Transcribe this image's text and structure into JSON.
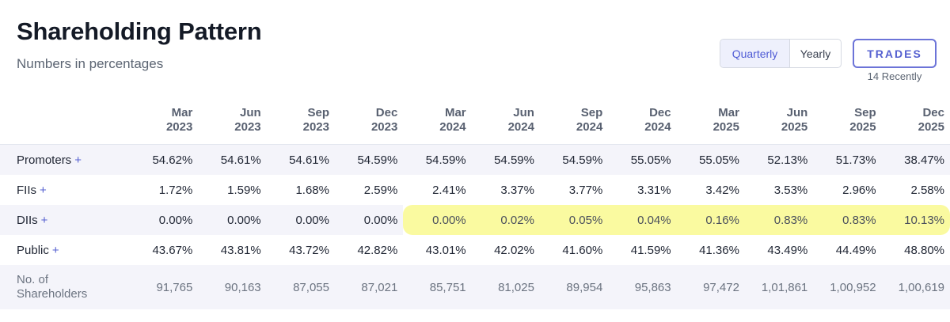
{
  "header": {
    "title": "Shareholding Pattern",
    "subtitle": "Numbers in percentages"
  },
  "controls": {
    "toggle_options": [
      "Quarterly",
      "Yearly"
    ],
    "selected": "Quarterly",
    "trades_label": "TRADES",
    "trades_sub": "14 Recently"
  },
  "table": {
    "periods": [
      {
        "month": "Mar",
        "year": "2023"
      },
      {
        "month": "Jun",
        "year": "2023"
      },
      {
        "month": "Sep",
        "year": "2023"
      },
      {
        "month": "Dec",
        "year": "2023"
      },
      {
        "month": "Mar",
        "year": "2024"
      },
      {
        "month": "Jun",
        "year": "2024"
      },
      {
        "month": "Sep",
        "year": "2024"
      },
      {
        "month": "Dec",
        "year": "2024"
      },
      {
        "month": "Mar",
        "year": "2025"
      },
      {
        "month": "Jun",
        "year": "2025"
      },
      {
        "month": "Sep",
        "year": "2025"
      },
      {
        "month": "Dec",
        "year": "2025"
      }
    ],
    "rows": [
      {
        "label": "Promoters",
        "expandable": true,
        "values": [
          "54.62%",
          "54.61%",
          "54.61%",
          "54.59%",
          "54.59%",
          "54.59%",
          "54.59%",
          "55.05%",
          "55.05%",
          "52.13%",
          "51.73%",
          "38.47%"
        ]
      },
      {
        "label": "FIIs",
        "expandable": true,
        "values": [
          "1.72%",
          "1.59%",
          "1.68%",
          "2.59%",
          "2.41%",
          "3.37%",
          "3.77%",
          "3.31%",
          "3.42%",
          "3.53%",
          "2.96%",
          "2.58%"
        ]
      },
      {
        "label": "DIIs",
        "expandable": true,
        "values": [
          "0.00%",
          "0.00%",
          "0.00%",
          "0.00%",
          "0.00%",
          "0.02%",
          "0.05%",
          "0.04%",
          "0.16%",
          "0.83%",
          "0.83%",
          "10.13%"
        ],
        "highlight_from_index": 4
      },
      {
        "label": "Public",
        "expandable": true,
        "values": [
          "43.67%",
          "43.81%",
          "43.72%",
          "42.82%",
          "43.01%",
          "42.02%",
          "41.60%",
          "41.59%",
          "41.36%",
          "43.49%",
          "44.49%",
          "48.80%"
        ]
      },
      {
        "label": "No. of Shareholders",
        "expandable": false,
        "values": [
          "91,765",
          "90,163",
          "87,055",
          "87,021",
          "85,751",
          "81,025",
          "89,954",
          "95,863",
          "97,472",
          "1,01,861",
          "1,00,952",
          "1,00,619"
        ]
      }
    ],
    "plus_symbol": "+"
  },
  "colors": {
    "accent": "#5560d0",
    "highlight": "#fafaa0",
    "row_shade": "#f4f4fa"
  }
}
